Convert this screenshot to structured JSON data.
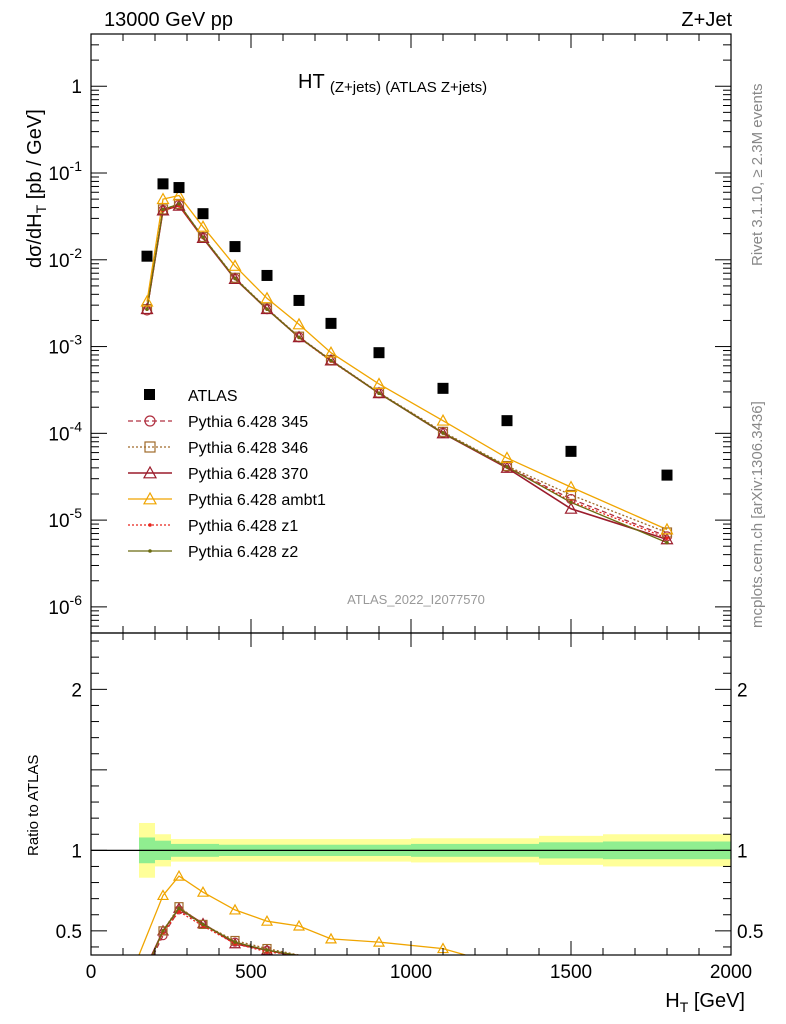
{
  "header": {
    "left": "13000 GeV pp",
    "right": "Z+Jet"
  },
  "side_labels": {
    "rivet": "Rivet 3.1.10, ≥ 2.3M events",
    "mcplots": "mcplots.cern.ch [arXiv:1306.3436]"
  },
  "colors": {
    "atlas": "#000000",
    "p345": "#b03040",
    "p346": "#a06a2a",
    "p370": "#9b1c2c",
    "ambt1": "#f0a500",
    "z1": "#e8241c",
    "z2": "#6b6b10",
    "band_inner": "#90ee90",
    "band_outer": "#ffff99"
  },
  "chart_data": {
    "type": "scatter",
    "title_main": "HT",
    "title_sub": "(Z+jets) (ATLAS Z+jets)",
    "xlabel_main": "H",
    "xlabel_sub": "T",
    "xlabel_unit": " [GeV]",
    "ylabel": "dσ/dH",
    "ylabel_sub": "T",
    "ylabel_unit": " [pb / GeV]",
    "ratio_ylabel": "Ratio to ATLAS",
    "watermark": "ATLAS_2022_I2077570",
    "xlim": [
      0,
      2000
    ],
    "ylim": [
      5e-07,
      4
    ],
    "yscale": "log",
    "ratio_ylim": [
      0.35,
      2.35
    ],
    "x_ticks": [
      "0",
      "500",
      "1000",
      "1500",
      "2000"
    ],
    "y_ticks": [
      "1",
      "10^-1",
      "10^-2",
      "10^-3",
      "10^-4",
      "10^-5",
      "10^-6"
    ],
    "ratio_ticks": [
      "2",
      "1",
      "0.5"
    ],
    "legend_position": "left-middle",
    "x": [
      175,
      225,
      275,
      350,
      450,
      550,
      650,
      750,
      900,
      1100,
      1300,
      1500,
      1800
    ],
    "atlas": [
      0.011,
      0.075,
      0.068,
      0.034,
      0.0142,
      0.0066,
      0.0034,
      0.00185,
      0.00085,
      0.00033,
      0.00014,
      6.2e-05,
      3.3e-05
    ],
    "series": [
      {
        "name": "Pythia 6.428 345",
        "key": "p345",
        "values": [
          0.0026,
          0.037,
          0.043,
          0.018,
          0.0061,
          0.0027,
          0.00128,
          0.00069,
          0.00029,
          0.000102,
          4.1e-05,
          1.75e-05,
          6.5e-06
        ]
      },
      {
        "name": "Pythia 6.428 346",
        "key": "p346",
        "values": [
          0.0027,
          0.038,
          0.044,
          0.0183,
          0.0062,
          0.00275,
          0.0013,
          0.0007,
          0.000295,
          0.000104,
          4.2e-05,
          1.95e-05,
          7.2e-06
        ]
      },
      {
        "name": "Pythia 6.428 370",
        "key": "p370",
        "values": [
          0.0027,
          0.037,
          0.042,
          0.0178,
          0.006,
          0.0027,
          0.00128,
          0.00069,
          0.00029,
          0.0001,
          4e-05,
          1.35e-05,
          6e-06
        ]
      },
      {
        "name": "Pythia 6.428 ambt1",
        "key": "ambt1",
        "values": [
          0.0033,
          0.05,
          0.055,
          0.024,
          0.0085,
          0.0036,
          0.0018,
          0.00085,
          0.00037,
          0.00014,
          5.2e-05,
          2.4e-05,
          7.8e-06
        ]
      },
      {
        "name": "Pythia 6.428 z1",
        "key": "z1",
        "values": [
          0.0027,
          0.037,
          0.042,
          0.018,
          0.0061,
          0.0027,
          0.00127,
          0.00068,
          0.00029,
          0.000101,
          4.1e-05,
          1.65e-05,
          6.2e-06
        ]
      },
      {
        "name": "Pythia 6.428 z2",
        "key": "z2",
        "values": [
          0.0027,
          0.038,
          0.044,
          0.0182,
          0.0061,
          0.0027,
          0.00128,
          0.00069,
          0.00029,
          0.000101,
          4.1e-05,
          1.6e-05,
          5.5e-06
        ]
      }
    ],
    "ratio_series": [
      {
        "key": "ambt1",
        "x": [
          150,
          225,
          275,
          350,
          450,
          550,
          650,
          750,
          900,
          1100,
          1170
        ],
        "values": [
          0.35,
          0.72,
          0.84,
          0.74,
          0.63,
          0.56,
          0.53,
          0.45,
          0.43,
          0.39,
          0.35
        ]
      },
      {
        "key": "p370",
        "x": [
          190,
          225,
          275,
          350,
          450,
          550,
          625
        ],
        "values": [
          0.35,
          0.5,
          0.64,
          0.545,
          0.42,
          0.38,
          0.35
        ]
      },
      {
        "key": "p345",
        "x": [
          195,
          225,
          275,
          350,
          450,
          550,
          640
        ],
        "values": [
          0.35,
          0.47,
          0.63,
          0.54,
          0.43,
          0.38,
          0.35
        ]
      },
      {
        "key": "p346",
        "x": [
          192,
          225,
          275,
          350,
          450,
          550,
          650
        ],
        "values": [
          0.35,
          0.5,
          0.65,
          0.54,
          0.44,
          0.39,
          0.35
        ]
      },
      {
        "key": "z1",
        "x": [
          192,
          225,
          275,
          350,
          450,
          550,
          640
        ],
        "values": [
          0.35,
          0.49,
          0.62,
          0.53,
          0.42,
          0.37,
          0.35
        ]
      },
      {
        "key": "z2",
        "x": [
          192,
          225,
          275,
          350,
          450,
          550,
          640
        ],
        "values": [
          0.35,
          0.5,
          0.64,
          0.54,
          0.43,
          0.38,
          0.35
        ]
      }
    ],
    "bands": [
      {
        "x0": 150,
        "x1": 200,
        "inner": 0.08,
        "outer": 0.17
      },
      {
        "x0": 200,
        "x1": 250,
        "inner": 0.06,
        "outer": 0.1
      },
      {
        "x0": 250,
        "x1": 400,
        "inner": 0.04,
        "outer": 0.07
      },
      {
        "x0": 400,
        "x1": 1000,
        "inner": 0.035,
        "outer": 0.07
      },
      {
        "x0": 1000,
        "x1": 1400,
        "inner": 0.04,
        "outer": 0.075
      },
      {
        "x0": 1400,
        "x1": 1600,
        "inner": 0.05,
        "outer": 0.09
      },
      {
        "x0": 1600,
        "x1": 2000,
        "inner": 0.055,
        "outer": 0.1
      }
    ]
  }
}
